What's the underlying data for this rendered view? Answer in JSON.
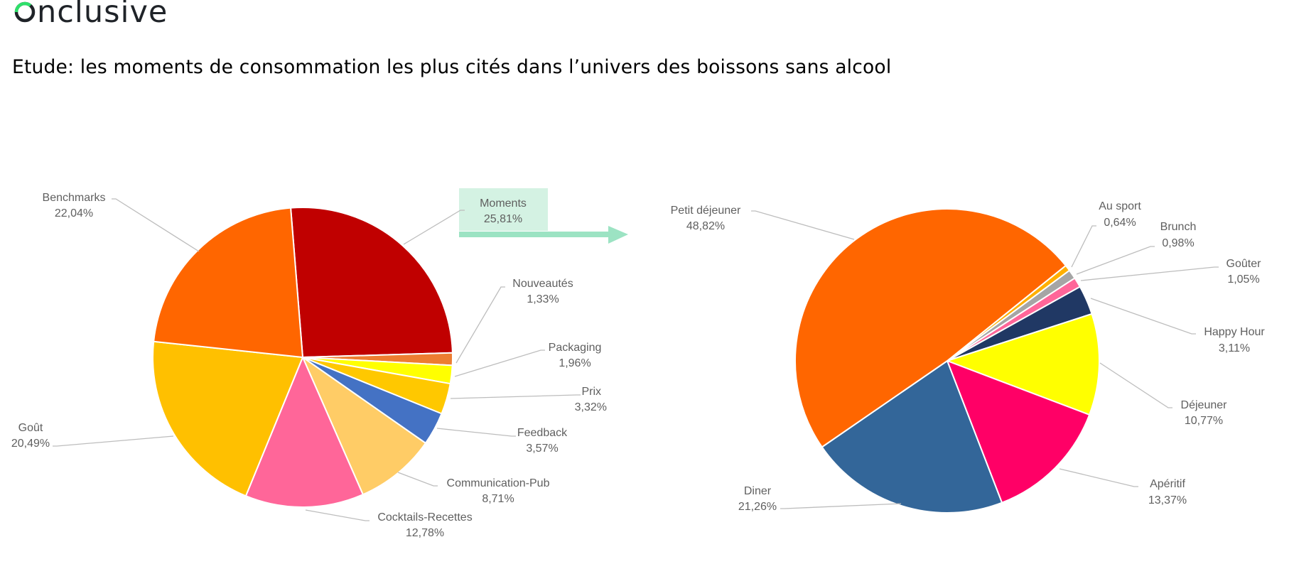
{
  "header": {
    "logo_text": "nclusive",
    "logo_full": "Onclusive",
    "logo_accent_color": "#2ee06a",
    "logo_text_color": "#1f2328"
  },
  "subtitle": "Etude: les moments de consommation les plus cités dans l’univers des boissons sans alcool",
  "highlight": {
    "label": "Moments",
    "value": "25,81%",
    "box_color": "#d4f2e3",
    "arrow_color": "#9ce3c3"
  },
  "chart_data": [
    {
      "type": "pie",
      "title": "",
      "slices": [
        {
          "label": "Moments",
          "value": 25.81,
          "display": "25,81%",
          "color": "#c00000"
        },
        {
          "label": "Nouveautés",
          "value": 1.33,
          "display": "1,33%",
          "color": "#ed7d31"
        },
        {
          "label": "Packaging",
          "value": 1.96,
          "display": "1,96%",
          "color": "#ffff00"
        },
        {
          "label": "Prix",
          "value": 3.32,
          "display": "3,32%",
          "color": "#ffc800"
        },
        {
          "label": "Feedback",
          "value": 3.57,
          "display": "3,57%",
          "color": "#4472c4"
        },
        {
          "label": "Communication-Pub",
          "value": 8.71,
          "display": "8,71%",
          "color": "#ffcc66"
        },
        {
          "label": "Cocktails-Recettes",
          "value": 12.78,
          "display": "12,78%",
          "color": "#ff6699"
        },
        {
          "label": "Goût",
          "value": 20.49,
          "display": "20,49%",
          "color": "#ffc000"
        },
        {
          "label": "Benchmarks",
          "value": 22.04,
          "display": "22,04%",
          "color": "#ff6600"
        }
      ],
      "legend": "none (outside labels with leader lines)"
    },
    {
      "type": "pie",
      "title": "",
      "slices": [
        {
          "label": "Au sport",
          "value": 0.64,
          "display": "0,64%",
          "color": "#ffb000"
        },
        {
          "label": "Brunch",
          "value": 0.98,
          "display": "0,98%",
          "color": "#a5a5a5"
        },
        {
          "label": "Goûter",
          "value": 1.05,
          "display": "1,05%",
          "color": "#ff6699"
        },
        {
          "label": "Happy Hour",
          "value": 3.11,
          "display": "3,11%",
          "color": "#203864"
        },
        {
          "label": "Déjeuner",
          "value": 10.77,
          "display": "10,77%",
          "color": "#ffff00"
        },
        {
          "label": "Apéritif",
          "value": 13.37,
          "display": "13,37%",
          "color": "#ff0066"
        },
        {
          "label": "Diner",
          "value": 21.26,
          "display": "21,26%",
          "color": "#336699"
        },
        {
          "label": "Petit déjeuner",
          "value": 48.82,
          "display": "48,82%",
          "color": "#ff6600"
        }
      ],
      "legend": "none (outside labels with leader lines)"
    }
  ]
}
